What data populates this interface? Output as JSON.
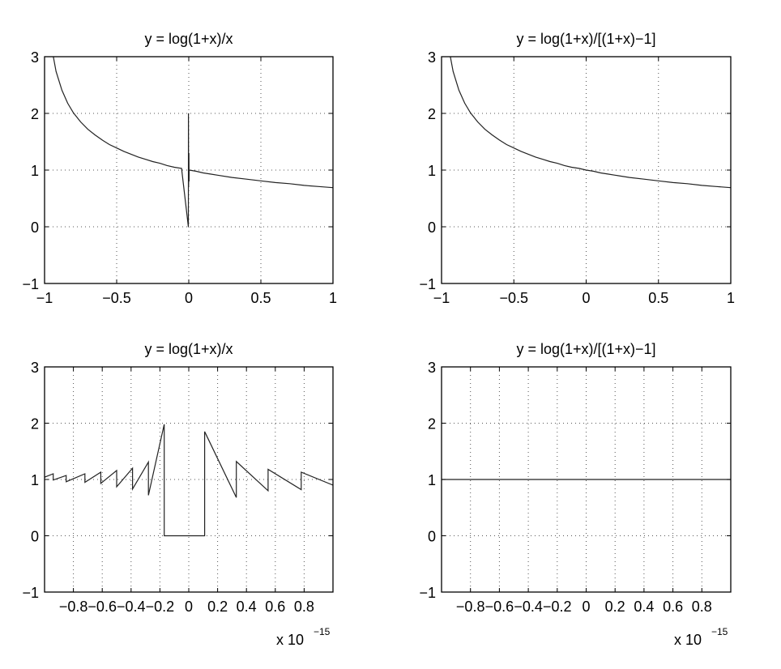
{
  "chart_data": [
    {
      "type": "line",
      "title": "y = log(1+x)/x",
      "xlabel": "",
      "ylabel": "",
      "xlim": [
        -1,
        1
      ],
      "ylim": [
        -1,
        3
      ],
      "grid": true,
      "xticks": [
        -1,
        -0.5,
        0,
        0.5,
        1
      ],
      "xtick_labels": [
        "−1",
        "−0.5",
        "0",
        "0.5",
        "1"
      ],
      "yticks": [
        -1,
        0,
        1,
        2,
        3
      ],
      "ytick_labels": [
        "−1",
        "0",
        "1",
        "2",
        "3"
      ],
      "x_multiplier_label": "",
      "series": [
        {
          "x": [
            -0.95,
            -0.92,
            -0.88,
            -0.84,
            -0.8,
            -0.75,
            -0.7,
            -0.65,
            -0.6,
            -0.55,
            -0.5,
            -0.45,
            -0.4,
            -0.35,
            -0.3,
            -0.25,
            -0.2,
            -0.15,
            -0.1,
            -0.05,
            -0.003,
            -0.002,
            -0.001,
            0,
            0.001,
            0.002,
            0.003,
            0.05,
            0.1,
            0.15,
            0.2,
            0.3,
            0.4,
            0.5,
            0.6,
            0.7,
            0.8,
            0.9,
            1.0
          ],
          "y": [
            3.15,
            2.74,
            2.41,
            2.18,
            2.01,
            1.85,
            1.72,
            1.62,
            1.53,
            1.45,
            1.39,
            1.33,
            1.28,
            1.23,
            1.19,
            1.15,
            1.12,
            1.08,
            1.05,
            1.03,
            0.0,
            2.0,
            0.7,
            1.0,
            1.3,
            0.8,
            1.0,
            0.98,
            0.95,
            0.93,
            0.91,
            0.87,
            0.84,
            0.81,
            0.78,
            0.76,
            0.73,
            0.71,
            0.69
          ]
        }
      ]
    },
    {
      "type": "line",
      "title": "y = log(1+x)/[(1+x)−1]",
      "xlabel": "",
      "ylabel": "",
      "xlim": [
        -1,
        1
      ],
      "ylim": [
        -1,
        3
      ],
      "grid": true,
      "xticks": [
        -1,
        -0.5,
        0,
        0.5,
        1
      ],
      "xtick_labels": [
        "−1",
        "−0.5",
        "0",
        "0.5",
        "1"
      ],
      "yticks": [
        -1,
        0,
        1,
        2,
        3
      ],
      "ytick_labels": [
        "−1",
        "0",
        "1",
        "2",
        "3"
      ],
      "x_multiplier_label": "",
      "series": [
        {
          "x": [
            -0.95,
            -0.92,
            -0.88,
            -0.84,
            -0.8,
            -0.75,
            -0.7,
            -0.65,
            -0.6,
            -0.55,
            -0.5,
            -0.45,
            -0.4,
            -0.35,
            -0.3,
            -0.25,
            -0.2,
            -0.15,
            -0.1,
            -0.05,
            0,
            0.05,
            0.1,
            0.15,
            0.2,
            0.3,
            0.4,
            0.5,
            0.6,
            0.7,
            0.8,
            0.9,
            1.0
          ],
          "y": [
            3.15,
            2.74,
            2.41,
            2.18,
            2.01,
            1.85,
            1.72,
            1.62,
            1.53,
            1.45,
            1.39,
            1.33,
            1.28,
            1.23,
            1.19,
            1.15,
            1.12,
            1.08,
            1.05,
            1.03,
            1.0,
            0.98,
            0.95,
            0.93,
            0.91,
            0.87,
            0.84,
            0.81,
            0.78,
            0.76,
            0.73,
            0.71,
            0.69
          ]
        }
      ]
    },
    {
      "type": "line",
      "title": "y = log(1+x)/x",
      "xlabel": "",
      "ylabel": "",
      "xlim": [
        -1,
        1
      ],
      "ylim": [
        -1,
        3
      ],
      "grid": true,
      "xticks": [
        -0.8,
        -0.6,
        -0.4,
        -0.2,
        0,
        0.2,
        0.4,
        0.6,
        0.8
      ],
      "xtick_labels": [
        "−0.8",
        "−0.6",
        "−0.4",
        "−0.2",
        "0",
        "0.2",
        "0.4",
        "0.6",
        "0.8"
      ],
      "yticks": [
        -1,
        0,
        1,
        2,
        3
      ],
      "ytick_labels": [
        "−1",
        "0",
        "1",
        "2",
        "3"
      ],
      "x_multiplier_label": "x 10",
      "x_multiplier_exponent": "−15",
      "series": [
        {
          "x": [
            -1.0,
            -0.94,
            -0.94,
            -0.85,
            -0.85,
            -0.72,
            -0.72,
            -0.61,
            -0.61,
            -0.5,
            -0.5,
            -0.39,
            -0.39,
            -0.28,
            -0.28,
            -0.17,
            -0.17,
            -0.06,
            -0.06,
            0.11,
            0.11,
            0.33,
            0.33,
            0.55,
            0.55,
            0.78,
            0.78,
            1.0
          ],
          "y": [
            1.04,
            1.1,
            0.99,
            1.07,
            0.96,
            1.1,
            0.95,
            1.13,
            0.93,
            1.16,
            0.87,
            1.2,
            0.83,
            1.31,
            0.72,
            1.98,
            0.0,
            0.0,
            0.0,
            0.0,
            1.85,
            0.68,
            1.32,
            0.8,
            1.18,
            0.82,
            1.13,
            0.9
          ]
        }
      ]
    },
    {
      "type": "line",
      "title": "y = log(1+x)/[(1+x)−1]",
      "xlabel": "",
      "ylabel": "",
      "xlim": [
        -1,
        1
      ],
      "ylim": [
        -1,
        3
      ],
      "grid": true,
      "xticks": [
        -0.8,
        -0.6,
        -0.4,
        -0.2,
        0,
        0.2,
        0.4,
        0.6,
        0.8
      ],
      "xtick_labels": [
        "−0.8",
        "−0.6",
        "−0.4",
        "−0.2",
        "0",
        "0.2",
        "0.4",
        "0.6",
        "0.8"
      ],
      "yticks": [
        -1,
        0,
        1,
        2,
        3
      ],
      "ytick_labels": [
        "−1",
        "0",
        "1",
        "2",
        "3"
      ],
      "x_multiplier_label": "x 10",
      "x_multiplier_exponent": "−15",
      "series": [
        {
          "x": [
            -1.0,
            1.0
          ],
          "y": [
            1.0,
            1.0
          ]
        }
      ]
    }
  ]
}
